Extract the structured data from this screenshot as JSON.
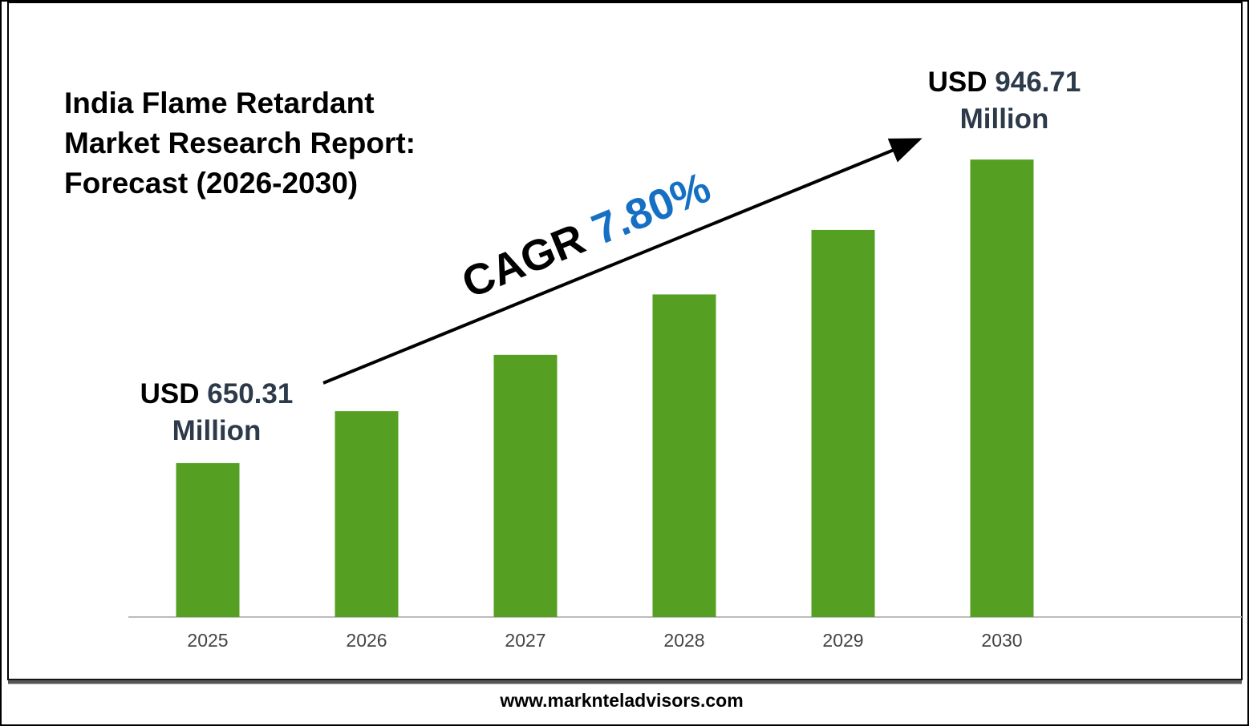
{
  "chart_data": {
    "type": "bar",
    "title": [
      "India Flame Retardant",
      "Market Research Report:",
      "Forecast (2026-2030)"
    ],
    "categories": [
      "2025",
      "2026",
      "2027",
      "2028",
      "2029",
      "2030"
    ],
    "values": [
      650.31,
      701,
      756,
      815,
      878,
      946.71
    ],
    "value_labels": [
      "USD 650.31 Million",
      null,
      null,
      null,
      null,
      "USD 946.71 Million"
    ],
    "color": "#55a022",
    "ylim": [
      500,
      1000
    ],
    "cagr_label": "CAGR",
    "cagr_value": "7.80%",
    "footer": "www.marknteladvisors.com"
  }
}
